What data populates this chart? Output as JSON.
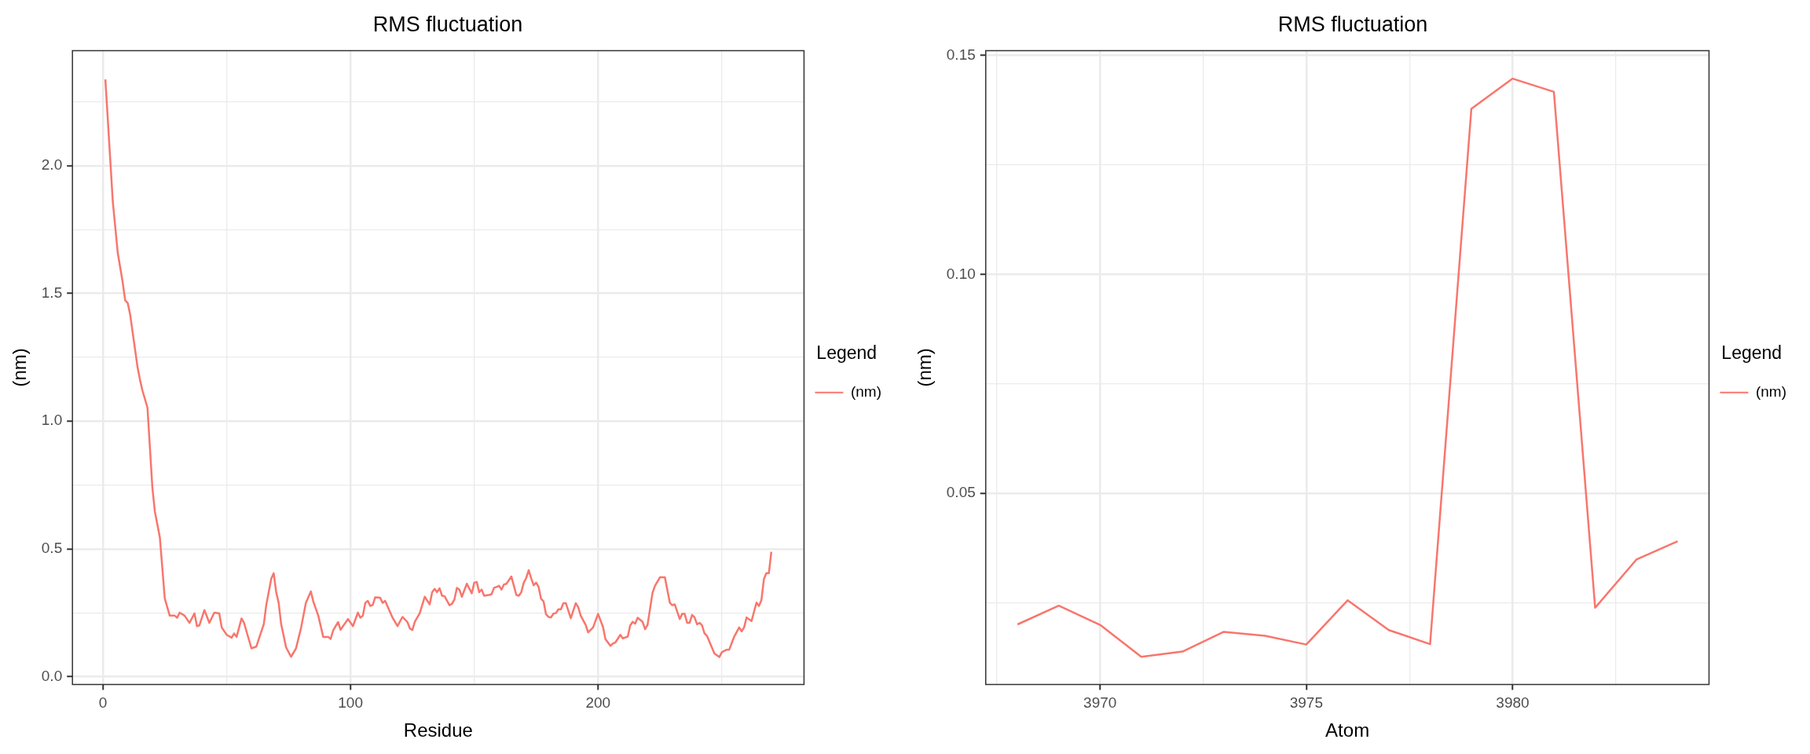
{
  "chart_data": [
    {
      "type": "line",
      "title": "RMS fluctuation",
      "xlabel": "Residue",
      "ylabel": "(nm)",
      "legend": "right",
      "legend_title": "Legend",
      "grid": true,
      "marker": "none",
      "line_style": "solid",
      "xlim": [
        -12.3,
        283.2
      ],
      "ylim": [
        -0.03,
        2.45
      ],
      "xticks": [
        0,
        {
          "value": 50,
          "label": null
        },
        100,
        {
          "value": 150,
          "label": null
        },
        200,
        {
          "value": 250,
          "label": null
        }
      ],
      "yticks": [
        {
          "value": 0,
          "label": "0.0"
        },
        {
          "value": 0.25,
          "label": null
        },
        {
          "value": 0.5,
          "label": "0.5"
        },
        {
          "value": 0.75,
          "label": null
        },
        {
          "value": 1,
          "label": "1.0"
        },
        {
          "value": 1.25,
          "label": null
        },
        {
          "value": 1.5,
          "label": "1.5"
        },
        {
          "value": 1.75,
          "label": null
        },
        {
          "value": 2,
          "label": "2.0"
        },
        {
          "value": 2.25,
          "label": null
        }
      ],
      "x": [
        1,
        4,
        6,
        8,
        9,
        10,
        11,
        14,
        15,
        16,
        18,
        20,
        21,
        23,
        25,
        27,
        29,
        30,
        31,
        33,
        35,
        37,
        38,
        39,
        41,
        43,
        45,
        47,
        48,
        50,
        52,
        53,
        54,
        56,
        57,
        60,
        62,
        63,
        65,
        66,
        68,
        69,
        70,
        71,
        72,
        74,
        76,
        78,
        80,
        82,
        84,
        85,
        87,
        89,
        91,
        92,
        93,
        95,
        96,
        99,
        101,
        103,
        104,
        105,
        106,
        107,
        108,
        109,
        110,
        112,
        113,
        114,
        117,
        119,
        121,
        123,
        124,
        125,
        126,
        128,
        130,
        132,
        133,
        134,
        135,
        136,
        137,
        138,
        140,
        141,
        142,
        143,
        144,
        145,
        147,
        149,
        150,
        151,
        152,
        153,
        154,
        156,
        157,
        158,
        159,
        160,
        161,
        162,
        163,
        165,
        167,
        168,
        169,
        170,
        171,
        172,
        173,
        174,
        175,
        176,
        177,
        178,
        179,
        180,
        181,
        182,
        183,
        184,
        185,
        186,
        187,
        189,
        191,
        192,
        193,
        195,
        196,
        198,
        200,
        202,
        203,
        205,
        206,
        207,
        209,
        210,
        212,
        213,
        214,
        215,
        216,
        218,
        219,
        220,
        222,
        223,
        225,
        227,
        229,
        230,
        231,
        233,
        234,
        235,
        236,
        237,
        238,
        239,
        240,
        241,
        242,
        243,
        244,
        247,
        249,
        250,
        252,
        253,
        255,
        257,
        258,
        259,
        260,
        262,
        264,
        265,
        266,
        267,
        268,
        269,
        270
      ],
      "series": [
        {
          "name": "(nm)",
          "color": "#f8766d",
          "values": [
            2.337,
            1.859,
            1.659,
            1.543,
            1.473,
            1.463,
            1.418,
            1.211,
            1.161,
            1.119,
            1.053,
            0.738,
            0.646,
            0.546,
            0.306,
            0.239,
            0.239,
            0.231,
            0.251,
            0.239,
            0.211,
            0.248,
            0.198,
            0.201,
            0.261,
            0.211,
            0.251,
            0.248,
            0.193,
            0.164,
            0.153,
            0.169,
            0.156,
            0.228,
            0.211,
            0.111,
            0.118,
            0.148,
            0.206,
            0.281,
            0.384,
            0.405,
            0.331,
            0.289,
            0.206,
            0.115,
            0.078,
            0.111,
            0.189,
            0.289,
            0.334,
            0.294,
            0.239,
            0.156,
            0.156,
            0.148,
            0.181,
            0.214,
            0.184,
            0.226,
            0.198,
            0.251,
            0.231,
            0.239,
            0.289,
            0.297,
            0.277,
            0.281,
            0.311,
            0.309,
            0.289,
            0.297,
            0.231,
            0.198,
            0.234,
            0.214,
            0.189,
            0.183,
            0.215,
            0.249,
            0.313,
            0.283,
            0.331,
            0.344,
            0.331,
            0.346,
            0.317,
            0.315,
            0.28,
            0.285,
            0.303,
            0.348,
            0.341,
            0.313,
            0.364,
            0.326,
            0.368,
            0.371,
            0.331,
            0.341,
            0.317,
            0.32,
            0.323,
            0.348,
            0.351,
            0.356,
            0.341,
            0.361,
            0.364,
            0.392,
            0.32,
            0.317,
            0.331,
            0.368,
            0.387,
            0.417,
            0.385,
            0.358,
            0.368,
            0.351,
            0.305,
            0.295,
            0.244,
            0.234,
            0.232,
            0.247,
            0.249,
            0.264,
            0.264,
            0.288,
            0.288,
            0.229,
            0.288,
            0.272,
            0.239,
            0.203,
            0.174,
            0.193,
            0.246,
            0.195,
            0.147,
            0.121,
            0.13,
            0.134,
            0.164,
            0.15,
            0.157,
            0.201,
            0.215,
            0.208,
            0.231,
            0.215,
            0.186,
            0.203,
            0.328,
            0.356,
            0.389,
            0.389,
            0.29,
            0.28,
            0.283,
            0.226,
            0.246,
            0.246,
            0.211,
            0.211,
            0.242,
            0.232,
            0.205,
            0.211,
            0.201,
            0.17,
            0.16,
            0.091,
            0.077,
            0.096,
            0.106,
            0.106,
            0.157,
            0.193,
            0.178,
            0.193,
            0.232,
            0.218,
            0.29,
            0.277,
            0.3,
            0.382,
            0.405,
            0.405,
            0.489
          ]
        }
      ]
    },
    {
      "type": "line",
      "title": "RMS fluctuation",
      "xlabel": "Atom",
      "ylabel": "(nm)",
      "legend": "right",
      "legend_title": "Legend",
      "grid": true,
      "marker": "none",
      "line_style": "solid",
      "xlim": [
        3967.23,
        3984.76
      ],
      "ylim": [
        0.0064,
        0.1511
      ],
      "xticks": [
        {
          "value": 3967.5,
          "label": null
        },
        3970,
        {
          "value": 3972.5,
          "label": null
        },
        3975,
        {
          "value": 3977.5,
          "label": null
        },
        3980,
        {
          "value": 3982.5,
          "label": null
        }
      ],
      "yticks": [
        {
          "value": 0.025,
          "label": null
        },
        {
          "value": 0.05,
          "label": "0.05"
        },
        {
          "value": 0.075,
          "label": null
        },
        {
          "value": 0.1,
          "label": "0.10"
        },
        {
          "value": 0.125,
          "label": null
        },
        {
          "value": 0.15,
          "label": "0.15"
        }
      ],
      "x": [
        3968,
        3969,
        3970,
        3971,
        3972,
        3973,
        3974,
        3975,
        3976,
        3977,
        3978,
        3979,
        3980,
        3981,
        3982,
        3983,
        3984
      ],
      "series": [
        {
          "name": "(nm)",
          "color": "#f8766d",
          "values": [
            0.0201,
            0.0244,
            0.02,
            0.0127,
            0.0139,
            0.0184,
            0.0175,
            0.0155,
            0.0256,
            0.0188,
            0.0156,
            0.1378,
            0.1447,
            0.1417,
            0.0239,
            0.0349,
            0.0391
          ]
        }
      ]
    }
  ]
}
